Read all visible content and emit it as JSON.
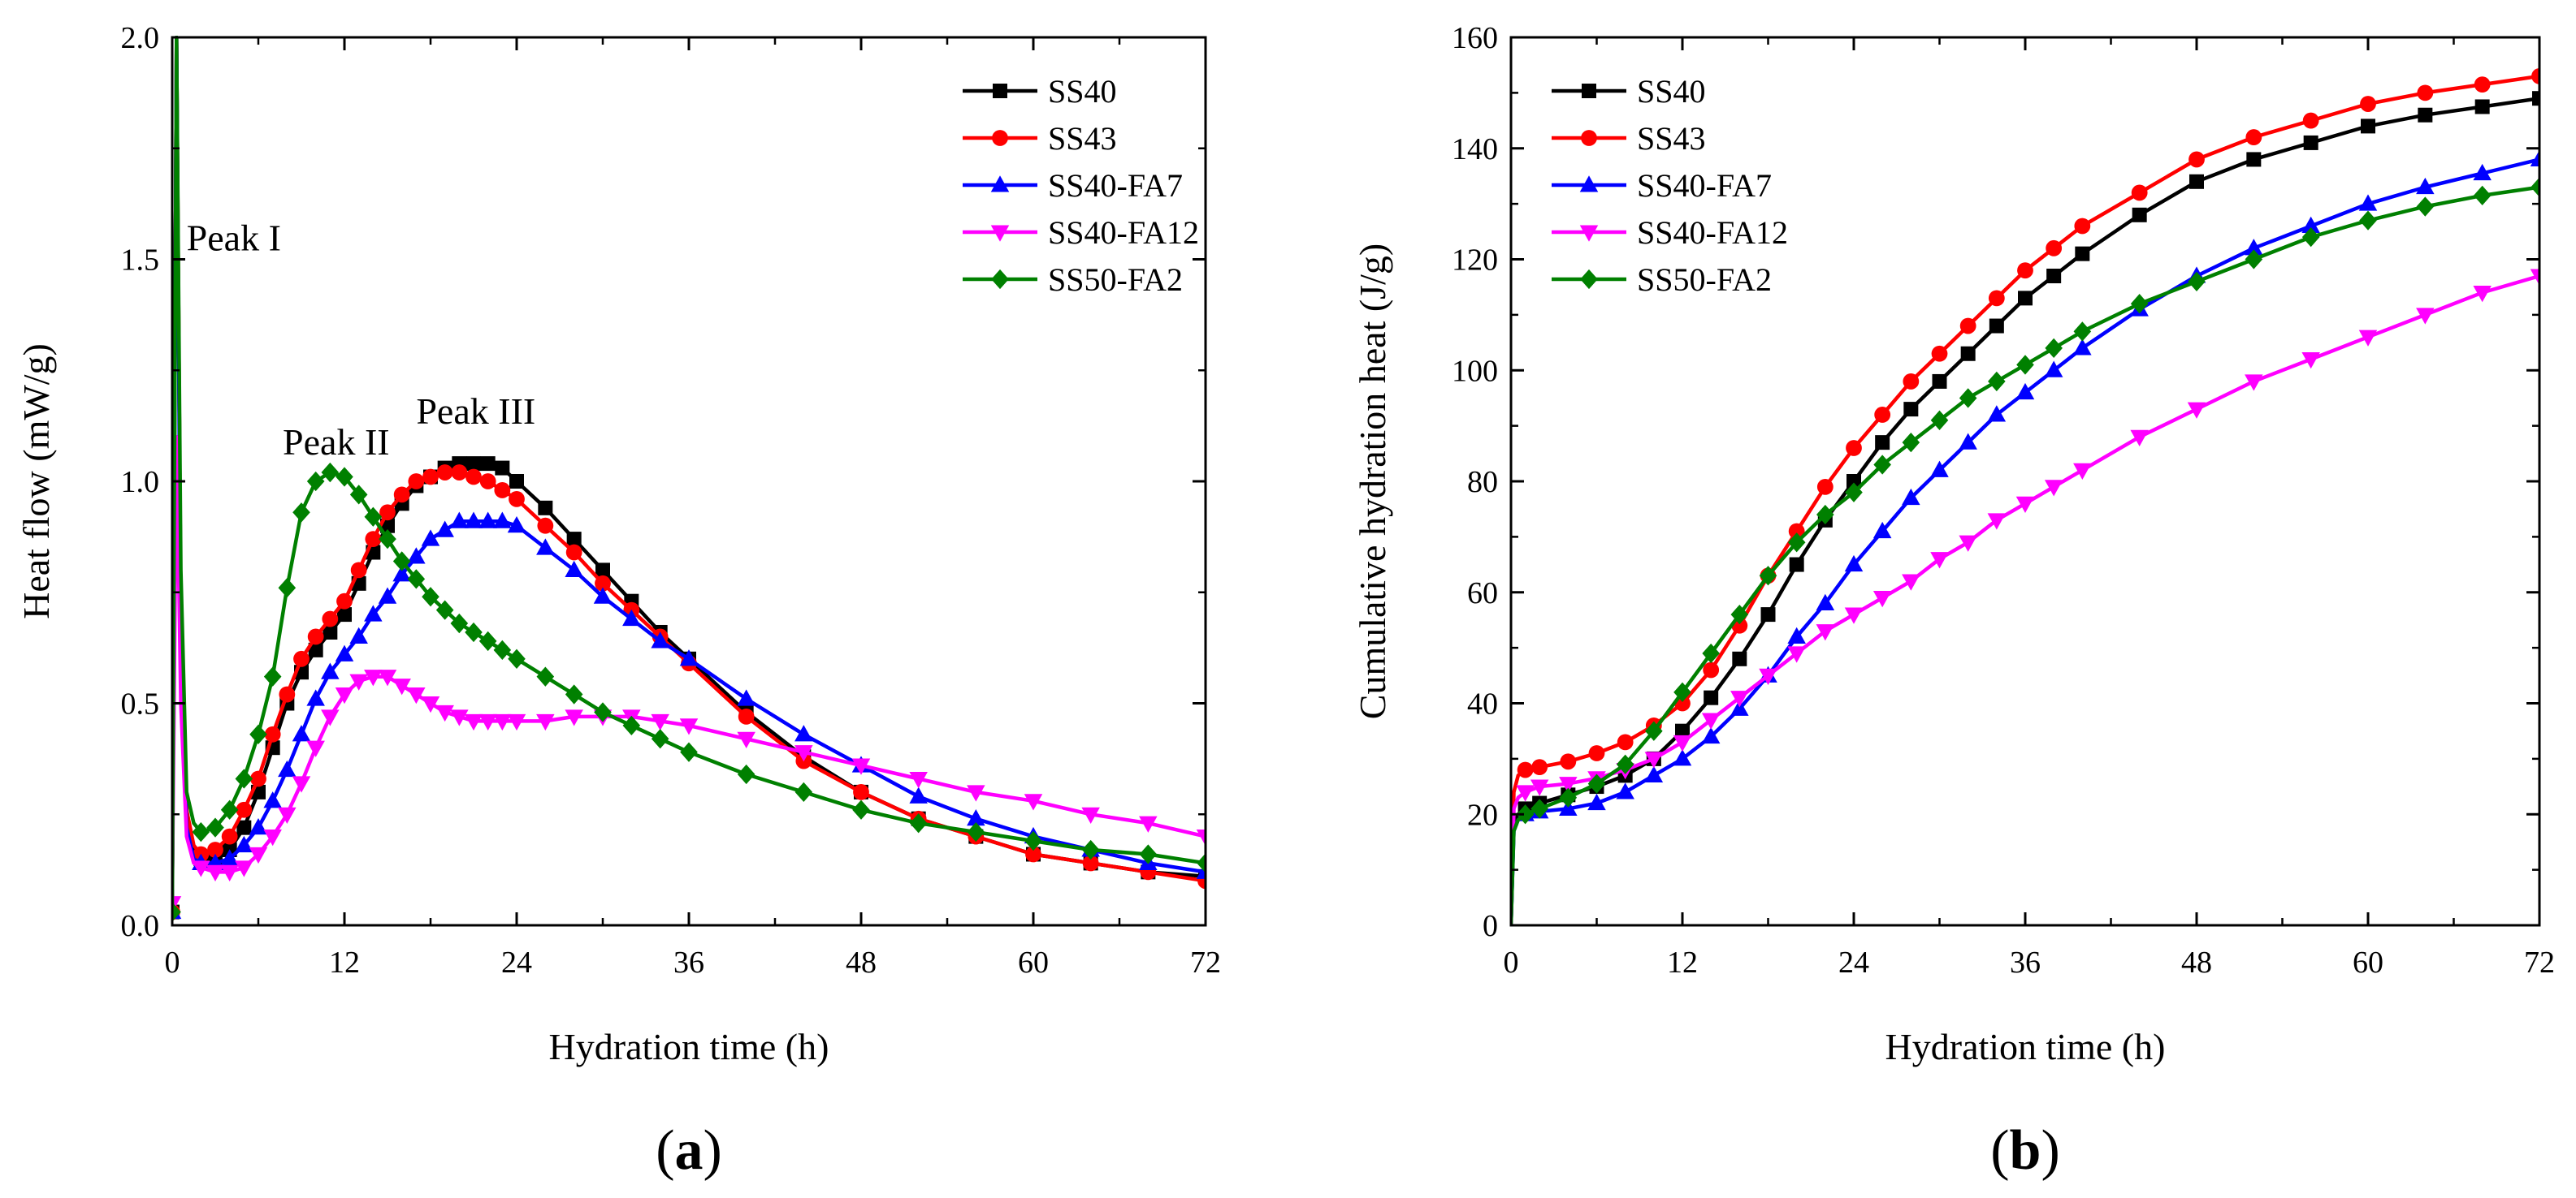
{
  "chart_data": [
    {
      "id": "a",
      "type": "line",
      "panel_label": "a",
      "xlabel": "Hydration time (h)",
      "ylabel": "Heat flow (mW/g)",
      "xlim": [
        0,
        72
      ],
      "ylim": [
        0,
        2.0
      ],
      "x_ticks": [
        0,
        12,
        24,
        36,
        48,
        60,
        72
      ],
      "y_ticks": [
        0.0,
        0.5,
        1.0,
        1.5,
        2.0
      ],
      "y_tick_labels": [
        "0.0",
        "0.5",
        "1.0",
        "1.5",
        "2.0"
      ],
      "legend_position": "top-right",
      "annotations": [
        {
          "text": "Peak I",
          "x": 1.0,
          "y": 1.52
        },
        {
          "text": "Peak II",
          "x": 7.7,
          "y": 1.06
        },
        {
          "text": "Peak III",
          "x": 17.0,
          "y": 1.13
        }
      ],
      "series": [
        {
          "name": "SS40",
          "color": "#000000",
          "marker": "square",
          "x": [
            0,
            0.3,
            0.6,
            1,
            1.5,
            2,
            3,
            4,
            5,
            6,
            7,
            8,
            9,
            10,
            11,
            12,
            13,
            14,
            15,
            16,
            17,
            18,
            19,
            20,
            21,
            22,
            23,
            24,
            26,
            28,
            30,
            32,
            34,
            36,
            40,
            44,
            48,
            52,
            56,
            60,
            64,
            68,
            72
          ],
          "y": [
            0.03,
            2.0,
            0.7,
            0.25,
            0.16,
            0.15,
            0.15,
            0.17,
            0.22,
            0.3,
            0.4,
            0.5,
            0.57,
            0.62,
            0.66,
            0.7,
            0.77,
            0.84,
            0.9,
            0.95,
            0.99,
            1.01,
            1.03,
            1.04,
            1.04,
            1.04,
            1.03,
            1.0,
            0.94,
            0.87,
            0.8,
            0.73,
            0.66,
            0.6,
            0.48,
            0.38,
            0.3,
            0.24,
            0.2,
            0.16,
            0.14,
            0.12,
            0.11
          ]
        },
        {
          "name": "SS43",
          "color": "#ff0000",
          "marker": "circle",
          "x": [
            0,
            0.3,
            0.6,
            1,
            1.5,
            2,
            3,
            4,
            5,
            6,
            7,
            8,
            9,
            10,
            11,
            12,
            13,
            14,
            15,
            16,
            17,
            18,
            19,
            20,
            21,
            22,
            23,
            24,
            26,
            28,
            30,
            32,
            34,
            36,
            40,
            44,
            48,
            52,
            56,
            60,
            64,
            68,
            72
          ],
          "y": [
            0.03,
            2.0,
            0.7,
            0.26,
            0.18,
            0.16,
            0.17,
            0.2,
            0.26,
            0.33,
            0.43,
            0.52,
            0.6,
            0.65,
            0.69,
            0.73,
            0.8,
            0.87,
            0.93,
            0.97,
            1.0,
            1.01,
            1.02,
            1.02,
            1.01,
            1.0,
            0.98,
            0.96,
            0.9,
            0.84,
            0.77,
            0.71,
            0.65,
            0.59,
            0.47,
            0.37,
            0.3,
            0.24,
            0.2,
            0.16,
            0.14,
            0.12,
            0.1
          ]
        },
        {
          "name": "SS40-FA7",
          "color": "#0000ff",
          "marker": "triangle-up",
          "x": [
            0,
            0.3,
            0.6,
            1,
            1.5,
            2,
            3,
            4,
            5,
            6,
            7,
            8,
            9,
            10,
            11,
            12,
            13,
            14,
            15,
            16,
            17,
            18,
            19,
            20,
            21,
            22,
            23,
            24,
            26,
            28,
            30,
            32,
            34,
            36,
            40,
            44,
            48,
            52,
            56,
            60,
            64,
            68,
            72
          ],
          "y": [
            0.03,
            2.0,
            0.6,
            0.22,
            0.15,
            0.14,
            0.14,
            0.15,
            0.18,
            0.22,
            0.28,
            0.35,
            0.43,
            0.51,
            0.57,
            0.61,
            0.65,
            0.7,
            0.74,
            0.79,
            0.83,
            0.87,
            0.89,
            0.91,
            0.91,
            0.91,
            0.91,
            0.9,
            0.85,
            0.8,
            0.74,
            0.69,
            0.64,
            0.6,
            0.51,
            0.43,
            0.36,
            0.29,
            0.24,
            0.2,
            0.17,
            0.14,
            0.12
          ]
        },
        {
          "name": "SS40-FA12",
          "color": "#ff00ff",
          "marker": "triangle-down",
          "x": [
            0,
            0.3,
            0.6,
            1,
            1.5,
            2,
            3,
            4,
            5,
            6,
            7,
            8,
            9,
            10,
            11,
            12,
            13,
            14,
            15,
            16,
            17,
            18,
            19,
            20,
            21,
            22,
            23,
            24,
            26,
            28,
            30,
            32,
            34,
            36,
            40,
            44,
            48,
            52,
            56,
            60,
            64,
            68,
            72
          ],
          "y": [
            0.05,
            1.1,
            0.5,
            0.2,
            0.14,
            0.13,
            0.12,
            0.12,
            0.13,
            0.16,
            0.2,
            0.25,
            0.32,
            0.4,
            0.47,
            0.52,
            0.55,
            0.56,
            0.56,
            0.54,
            0.52,
            0.5,
            0.48,
            0.47,
            0.46,
            0.46,
            0.46,
            0.46,
            0.46,
            0.47,
            0.47,
            0.47,
            0.46,
            0.45,
            0.42,
            0.39,
            0.36,
            0.33,
            0.3,
            0.28,
            0.25,
            0.23,
            0.2
          ]
        },
        {
          "name": "SS50-FA2",
          "color": "#008000",
          "marker": "diamond",
          "x": [
            0,
            0.3,
            0.6,
            1,
            1.5,
            2,
            3,
            4,
            5,
            6,
            7,
            8,
            9,
            10,
            11,
            12,
            13,
            14,
            15,
            16,
            17,
            18,
            19,
            20,
            21,
            22,
            23,
            24,
            26,
            28,
            30,
            32,
            34,
            36,
            40,
            44,
            48,
            52,
            56,
            60,
            64,
            68,
            72
          ],
          "y": [
            0.03,
            2.0,
            0.8,
            0.3,
            0.23,
            0.21,
            0.22,
            0.26,
            0.33,
            0.43,
            0.56,
            0.76,
            0.93,
            1.0,
            1.02,
            1.01,
            0.97,
            0.92,
            0.87,
            0.82,
            0.78,
            0.74,
            0.71,
            0.68,
            0.66,
            0.64,
            0.62,
            0.6,
            0.56,
            0.52,
            0.48,
            0.45,
            0.42,
            0.39,
            0.34,
            0.3,
            0.26,
            0.23,
            0.21,
            0.19,
            0.17,
            0.16,
            0.14
          ]
        }
      ]
    },
    {
      "id": "b",
      "type": "line",
      "panel_label": "b",
      "xlabel": "Hydration time (h)",
      "ylabel": "Cumulative hydration heat (J/g)",
      "xlim": [
        0,
        72
      ],
      "ylim": [
        0,
        160
      ],
      "x_ticks": [
        0,
        12,
        24,
        36,
        48,
        60,
        72
      ],
      "y_ticks": [
        0,
        20,
        40,
        60,
        80,
        100,
        120,
        140,
        160
      ],
      "y_tick_labels": [
        "0",
        "20",
        "40",
        "60",
        "80",
        "100",
        "120",
        "140",
        "160"
      ],
      "legend_position": "top-left",
      "series": [
        {
          "name": "SS40",
          "color": "#000000",
          "marker": "square",
          "x": [
            0,
            0.2,
            0.5,
            1,
            2,
            4,
            6,
            8,
            10,
            12,
            14,
            16,
            18,
            20,
            22,
            24,
            26,
            28,
            30,
            32,
            34,
            36,
            38,
            40,
            44,
            48,
            52,
            56,
            60,
            64,
            68,
            72
          ],
          "y": [
            0,
            18,
            20,
            21,
            22,
            23.5,
            25,
            27,
            30,
            35,
            41,
            48,
            56,
            65,
            73,
            80,
            87,
            93,
            98,
            103,
            108,
            113,
            117,
            121,
            128,
            134,
            138,
            141,
            144,
            146,
            147.5,
            149
          ]
        },
        {
          "name": "SS43",
          "color": "#ff0000",
          "marker": "circle",
          "x": [
            0,
            0.2,
            0.5,
            1,
            2,
            4,
            6,
            8,
            10,
            12,
            14,
            16,
            18,
            20,
            22,
            24,
            26,
            28,
            30,
            32,
            34,
            36,
            38,
            40,
            44,
            48,
            52,
            56,
            60,
            64,
            68,
            72
          ],
          "y": [
            0,
            24,
            27,
            28,
            28.5,
            29.5,
            31,
            33,
            36,
            40,
            46,
            54,
            63,
            71,
            79,
            86,
            92,
            98,
            103,
            108,
            113,
            118,
            122,
            126,
            132,
            138,
            142,
            145,
            148,
            150,
            151.5,
            153
          ]
        },
        {
          "name": "SS40-FA7",
          "color": "#0000ff",
          "marker": "triangle-up",
          "x": [
            0,
            0.2,
            0.5,
            1,
            2,
            4,
            6,
            8,
            10,
            12,
            14,
            16,
            18,
            20,
            22,
            24,
            26,
            28,
            30,
            32,
            34,
            36,
            38,
            40,
            44,
            48,
            52,
            56,
            60,
            64,
            68,
            72
          ],
          "y": [
            0,
            17,
            19,
            20,
            20.5,
            21,
            22,
            24,
            27,
            30,
            34,
            39,
            45,
            52,
            58,
            65,
            71,
            77,
            82,
            87,
            92,
            96,
            100,
            104,
            111,
            117,
            122,
            126,
            130,
            133,
            135.5,
            138
          ]
        },
        {
          "name": "SS40-FA12",
          "color": "#ff00ff",
          "marker": "triangle-down",
          "x": [
            0,
            0.2,
            0.5,
            1,
            2,
            4,
            6,
            8,
            10,
            12,
            14,
            16,
            18,
            20,
            22,
            24,
            26,
            28,
            30,
            32,
            34,
            36,
            38,
            40,
            44,
            48,
            52,
            56,
            60,
            64,
            68,
            72
          ],
          "y": [
            0,
            21,
            23,
            24,
            25,
            25.5,
            26.5,
            28,
            30,
            33,
            37,
            41,
            45,
            49,
            53,
            56,
            59,
            62,
            66,
            69,
            73,
            76,
            79,
            82,
            88,
            93,
            98,
            102,
            106,
            110,
            114,
            117
          ]
        },
        {
          "name": "SS50-FA2",
          "color": "#008000",
          "marker": "diamond",
          "x": [
            0,
            0.2,
            0.5,
            1,
            2,
            4,
            6,
            8,
            10,
            12,
            14,
            16,
            18,
            20,
            22,
            24,
            26,
            28,
            30,
            32,
            34,
            36,
            38,
            40,
            44,
            48,
            52,
            56,
            60,
            64,
            68,
            72
          ],
          "y": [
            0,
            17,
            19,
            20,
            21,
            23,
            25.5,
            29,
            35,
            42,
            49,
            56,
            63,
            69,
            74,
            78,
            83,
            87,
            91,
            95,
            98,
            101,
            104,
            107,
            112,
            116,
            120,
            124,
            127,
            129.5,
            131.5,
            133
          ]
        }
      ]
    }
  ]
}
